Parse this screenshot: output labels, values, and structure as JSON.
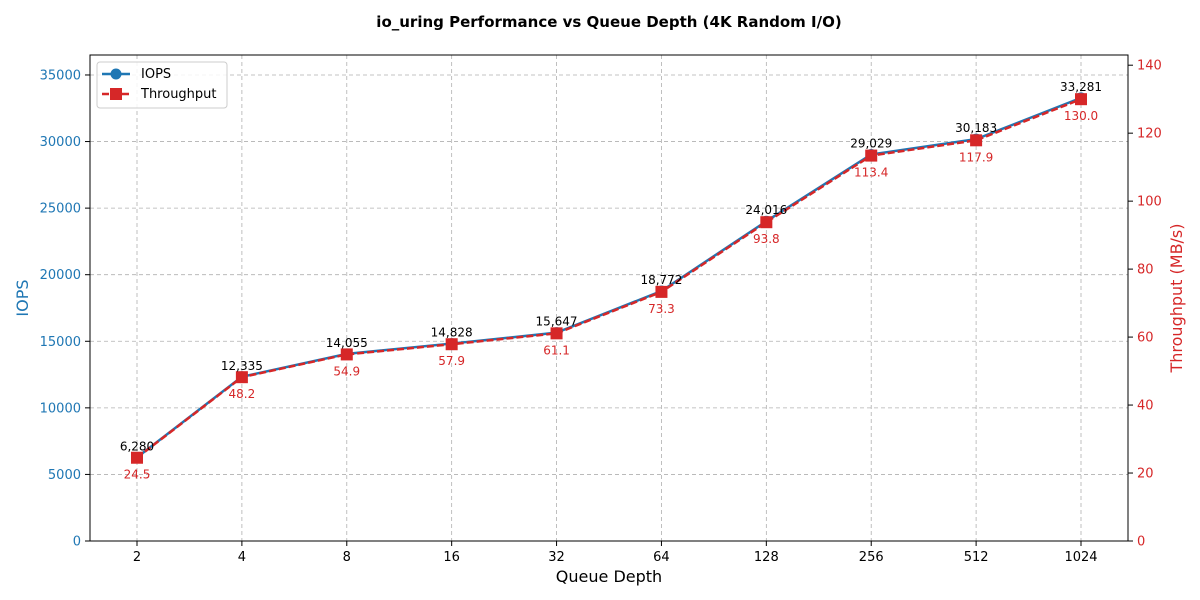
{
  "chart_data": {
    "type": "line",
    "title": "io_uring Performance vs Queue Depth (4K Random I/O)",
    "xlabel": "Queue Depth",
    "ylabel_left": "IOPS",
    "ylabel_right": "Throughput (MB/s)",
    "categories": [
      "2",
      "4",
      "8",
      "16",
      "32",
      "64",
      "128",
      "256",
      "512",
      "1024"
    ],
    "ylim_left": [
      0,
      36500
    ],
    "ylim_right": [
      0,
      143
    ],
    "yticks_left": [
      0,
      5000,
      10000,
      15000,
      20000,
      25000,
      30000,
      35000
    ],
    "yticks_right": [
      0,
      20,
      40,
      60,
      80,
      100,
      120,
      140
    ],
    "grid": true,
    "legend_position": "top-left",
    "series": [
      {
        "name": "IOPS",
        "axis": "left",
        "color": "#1f77b4",
        "marker": "circle",
        "values": [
          6280,
          12335,
          14055,
          14828,
          15647,
          18772,
          24016,
          29029,
          30183,
          33281
        ],
        "labels": [
          "6,280",
          "12,335",
          "14,055",
          "14,828",
          "15,647",
          "18,772",
          "24,016",
          "29,029",
          "30,183",
          "33,281"
        ]
      },
      {
        "name": "Throughput",
        "axis": "right",
        "color": "#d62728",
        "marker": "square",
        "line_style": "dashed",
        "values": [
          24.5,
          48.2,
          54.9,
          57.9,
          61.1,
          73.3,
          93.8,
          113.4,
          117.9,
          130.0
        ],
        "labels": [
          "24.5",
          "48.2",
          "54.9",
          "57.9",
          "61.1",
          "73.3",
          "93.8",
          "113.4",
          "117.9",
          "130.0"
        ]
      }
    ]
  }
}
